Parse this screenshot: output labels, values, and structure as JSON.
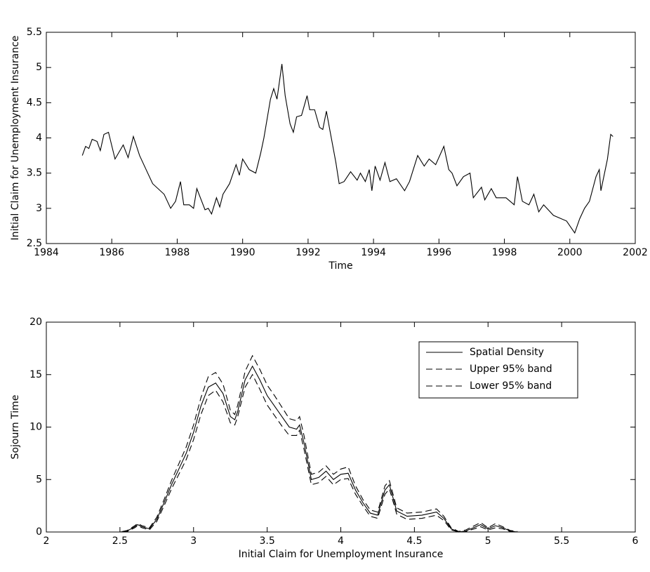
{
  "chart_data": [
    {
      "type": "line",
      "xlabel": "Time",
      "ylabel": "Initial Claim for Unemployment Insurance",
      "x": [
        1985.1,
        1985.2,
        1985.3,
        1985.4,
        1985.55,
        1985.65,
        1985.76,
        1985.9,
        1986.1,
        1986.35,
        1986.5,
        1986.66,
        1986.85,
        1987.1,
        1987.25,
        1987.6,
        1987.8,
        1987.95,
        1988.1,
        1988.2,
        1988.37,
        1988.5,
        1988.6,
        1988.75,
        1988.85,
        1988.95,
        1989.05,
        1989.2,
        1989.3,
        1989.4,
        1989.6,
        1989.8,
        1989.9,
        1990.0,
        1990.2,
        1990.4,
        1990.55,
        1990.65,
        1990.85,
        1990.95,
        1991.05,
        1991.2,
        1991.3,
        1991.45,
        1991.55,
        1991.65,
        1991.8,
        1991.97,
        1992.05,
        1992.2,
        1992.35,
        1992.45,
        1992.56,
        1992.67,
        1992.85,
        1992.95,
        1993.1,
        1993.3,
        1993.5,
        1993.6,
        1993.75,
        1993.87,
        1993.95,
        1994.05,
        1994.2,
        1994.35,
        1994.5,
        1994.7,
        1994.95,
        1995.1,
        1995.35,
        1995.55,
        1995.7,
        1995.9,
        1996.15,
        1996.3,
        1996.4,
        1996.55,
        1996.75,
        1996.95,
        1997.05,
        1997.3,
        1997.4,
        1997.6,
        1997.75,
        1998.05,
        1998.3,
        1998.4,
        1998.55,
        1998.75,
        1998.9,
        1999.05,
        1999.2,
        1999.5,
        1999.9,
        2000.15,
        2000.3,
        2000.45,
        2000.6,
        2000.8,
        2000.9,
        2000.95,
        2001.15,
        2001.25,
        2001.32
      ],
      "series": [
        {
          "name": "Initial Claim",
          "color": "#000000",
          "line_style": "solid",
          "values": [
            3.75,
            3.88,
            3.85,
            3.98,
            3.95,
            3.82,
            4.05,
            4.08,
            3.7,
            3.9,
            3.72,
            4.02,
            3.75,
            3.5,
            3.35,
            3.2,
            3.0,
            3.1,
            3.38,
            3.05,
            3.05,
            3.0,
            3.28,
            3.1,
            2.98,
            3.0,
            2.92,
            3.15,
            3.02,
            3.2,
            3.35,
            3.62,
            3.47,
            3.7,
            3.55,
            3.5,
            3.78,
            4.0,
            4.55,
            4.7,
            4.55,
            5.05,
            4.6,
            4.2,
            4.08,
            4.3,
            4.32,
            4.6,
            4.4,
            4.4,
            4.15,
            4.12,
            4.38,
            4.1,
            3.65,
            3.35,
            3.38,
            3.52,
            3.4,
            3.5,
            3.38,
            3.55,
            3.25,
            3.6,
            3.4,
            3.65,
            3.38,
            3.42,
            3.25,
            3.38,
            3.75,
            3.6,
            3.7,
            3.62,
            3.88,
            3.55,
            3.5,
            3.32,
            3.45,
            3.5,
            3.15,
            3.3,
            3.12,
            3.28,
            3.15,
            3.15,
            3.05,
            3.45,
            3.1,
            3.05,
            3.2,
            2.95,
            3.05,
            2.9,
            2.82,
            2.65,
            2.85,
            3.0,
            3.1,
            3.45,
            3.55,
            3.25,
            3.7,
            4.05,
            4.02
          ]
        }
      ],
      "xlim": [
        1984,
        2002
      ],
      "xticks": [
        1984,
        1986,
        1988,
        1990,
        1992,
        1994,
        1996,
        1998,
        2000,
        2002
      ],
      "ylim": [
        2.5,
        5.5
      ],
      "yticks": [
        2.5,
        3,
        3.5,
        4,
        4.5,
        5,
        5.5
      ]
    },
    {
      "type": "line",
      "xlabel": "Initial Claim for Unemployment Insurance",
      "ylabel": "Sojourn Time",
      "legend": "upper right",
      "x": [
        2.45,
        2.5,
        2.55,
        2.6,
        2.62,
        2.65,
        2.7,
        2.75,
        2.8,
        2.85,
        2.9,
        2.95,
        3.0,
        3.05,
        3.1,
        3.15,
        3.2,
        3.25,
        3.28,
        3.3,
        3.35,
        3.4,
        3.45,
        3.5,
        3.55,
        3.6,
        3.65,
        3.7,
        3.72,
        3.75,
        3.8,
        3.85,
        3.9,
        3.95,
        4.0,
        4.05,
        4.1,
        4.15,
        4.2,
        4.25,
        4.3,
        4.33,
        4.38,
        4.45,
        4.55,
        4.65,
        4.7,
        4.75,
        4.8,
        4.85,
        4.95,
        5.0,
        5.05,
        5.1,
        5.15,
        5.2
      ],
      "series": [
        {
          "name": "Spatial Density",
          "color": "#000000",
          "line_style": "solid",
          "values": [
            0,
            0,
            0.1,
            0.5,
            0.7,
            0.5,
            0.3,
            1.2,
            2.8,
            4.5,
            6,
            7.5,
            9.5,
            12,
            13.8,
            14.2,
            13.2,
            11,
            10.7,
            11.5,
            14.5,
            15.8,
            14.5,
            13,
            12,
            11,
            10,
            9.8,
            10.2,
            8.5,
            5,
            5.2,
            5.8,
            5,
            5.5,
            5.6,
            4,
            2.8,
            1.8,
            1.6,
            4,
            4.5,
            2,
            1.5,
            1.6,
            1.9,
            1.3,
            0.3,
            0,
            0.1,
            0.7,
            0.3,
            0.6,
            0.4,
            0.1,
            0
          ]
        },
        {
          "name": "Upper 95% band",
          "color": "#000000",
          "line_style": "dashed",
          "values": [
            0,
            0,
            0.15,
            0.6,
            0.8,
            0.6,
            0.4,
            1.4,
            3.1,
            4.9,
            6.5,
            8.1,
            10.2,
            12.8,
            14.8,
            15.2,
            14.1,
            11.6,
            11.2,
            12.1,
            15.3,
            16.8,
            15.5,
            14,
            13,
            11.9,
            10.8,
            10.6,
            11,
            9.2,
            5.5,
            5.7,
            6.3,
            5.5,
            6,
            6.2,
            4.4,
            3.1,
            2.1,
            1.9,
            4.4,
            4.9,
            2.3,
            1.8,
            1.9,
            2.2,
            1.5,
            0.4,
            0.05,
            0.2,
            0.9,
            0.4,
            0.8,
            0.5,
            0.15,
            0.05
          ]
        },
        {
          "name": "Lower 95% band",
          "color": "#000000",
          "line_style": "dashed",
          "values": [
            0,
            0,
            0.05,
            0.4,
            0.6,
            0.4,
            0.2,
            1.0,
            2.5,
            4.1,
            5.5,
            6.9,
            8.8,
            11.2,
            13.0,
            13.5,
            12.4,
            10.4,
            10.2,
            11.0,
            13.8,
            15.0,
            13.6,
            12.1,
            11.1,
            10.1,
            9.2,
            9.2,
            9.7,
            7.9,
            4.5,
            4.7,
            5.3,
            4.5,
            5,
            5.1,
            3.6,
            2.5,
            1.5,
            1.3,
            3.6,
            4.1,
            1.7,
            1.2,
            1.3,
            1.6,
            1.1,
            0.2,
            0,
            0.05,
            0.5,
            0.2,
            0.4,
            0.3,
            0.05,
            0
          ]
        }
      ],
      "xlim": [
        2,
        6
      ],
      "xticks": [
        2,
        2.5,
        3,
        3.5,
        4,
        4.5,
        5,
        5.5,
        6
      ],
      "ylim": [
        0,
        20
      ],
      "yticks": [
        0,
        5,
        10,
        15,
        20
      ]
    }
  ]
}
